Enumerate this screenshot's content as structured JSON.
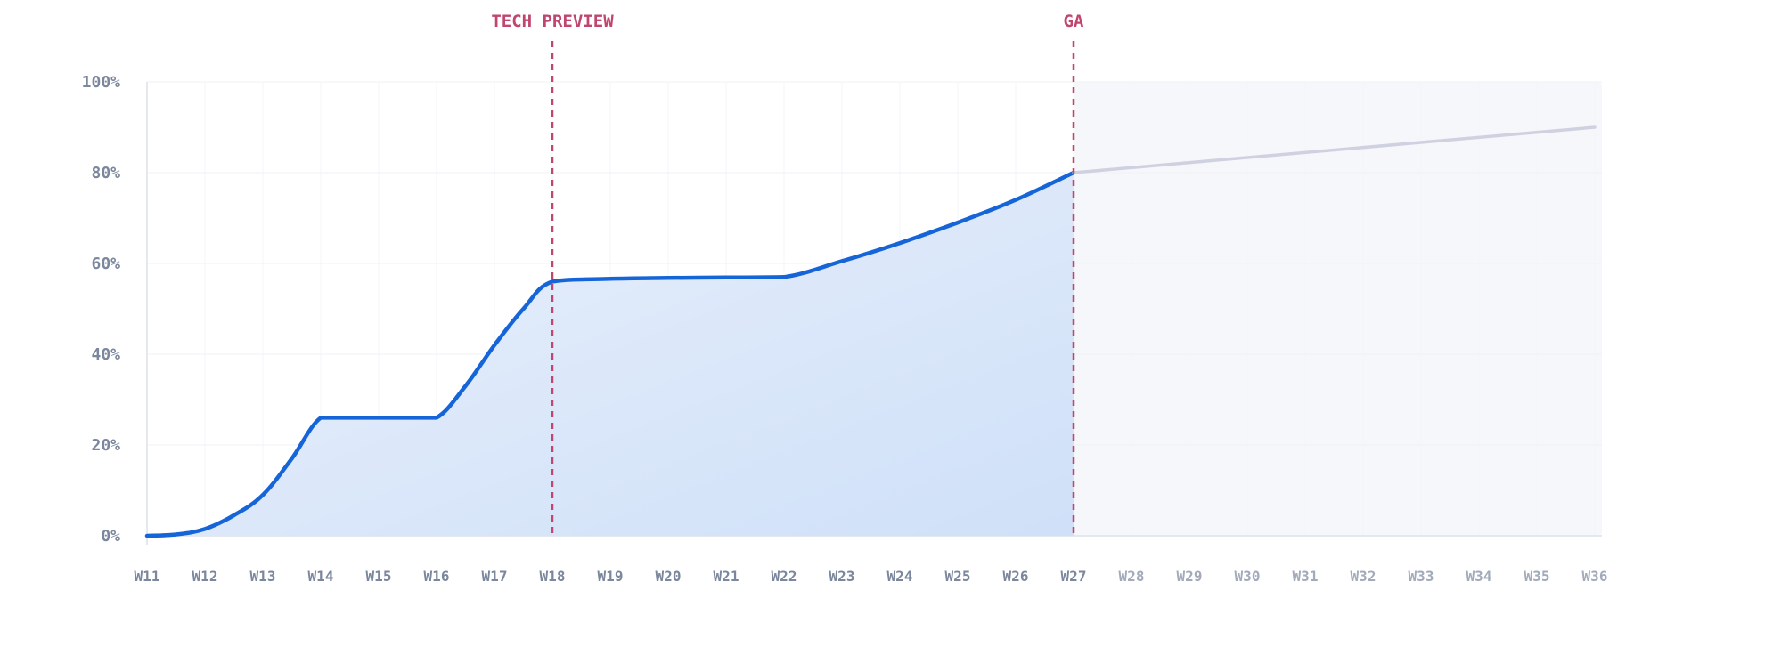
{
  "chart_data": {
    "type": "line",
    "title": "",
    "xlabel": "",
    "ylabel": "",
    "ylim": [
      0,
      100
    ],
    "yticks": [
      "0%",
      "20%",
      "40%",
      "60%",
      "80%",
      "100%"
    ],
    "categories": [
      "W11",
      "W12",
      "W13",
      "W14",
      "W15",
      "W16",
      "W17",
      "W18",
      "W19",
      "W20",
      "W21",
      "W22",
      "W23",
      "W24",
      "W25",
      "W26",
      "W27",
      "W28",
      "W29",
      "W30",
      "W31",
      "W32",
      "W33",
      "W34",
      "W35",
      "W36"
    ],
    "grid": true,
    "series": [
      {
        "style": "solid-filled",
        "color": "#1565d8",
        "fill_color": "#cfe0f8",
        "points": [
          [
            11,
            0
          ],
          [
            11.5,
            0.3
          ],
          [
            12,
            1.5
          ],
          [
            12.5,
            4.5
          ],
          [
            13,
            9
          ],
          [
            13.5,
            17
          ],
          [
            14,
            26
          ],
          [
            14.5,
            26
          ],
          [
            15,
            26
          ],
          [
            15.5,
            26
          ],
          [
            16,
            26
          ],
          [
            16.5,
            33
          ],
          [
            17,
            42
          ],
          [
            17.5,
            50
          ],
          [
            18,
            56
          ],
          [
            19,
            56.6
          ],
          [
            20,
            56.8
          ],
          [
            21,
            56.9
          ],
          [
            22,
            57
          ],
          [
            23,
            60.5
          ],
          [
            24,
            64.5
          ],
          [
            25,
            69
          ],
          [
            26,
            74
          ],
          [
            27,
            80
          ]
        ]
      },
      {
        "style": "projection",
        "color": "#cfd1e0",
        "points": [
          [
            27,
            80
          ],
          [
            36,
            90
          ]
        ]
      }
    ],
    "markers": [
      {
        "x": 18,
        "label": "TECH PREVIEW",
        "color": "#c0456f"
      },
      {
        "x": 27,
        "label": "GA",
        "color": "#c0456f"
      }
    ],
    "projection_region": {
      "from": 27,
      "to": 36,
      "color": "#f6f7fa"
    },
    "future_tick_color": "#a3abbb",
    "tick_color": "#7b879c"
  }
}
